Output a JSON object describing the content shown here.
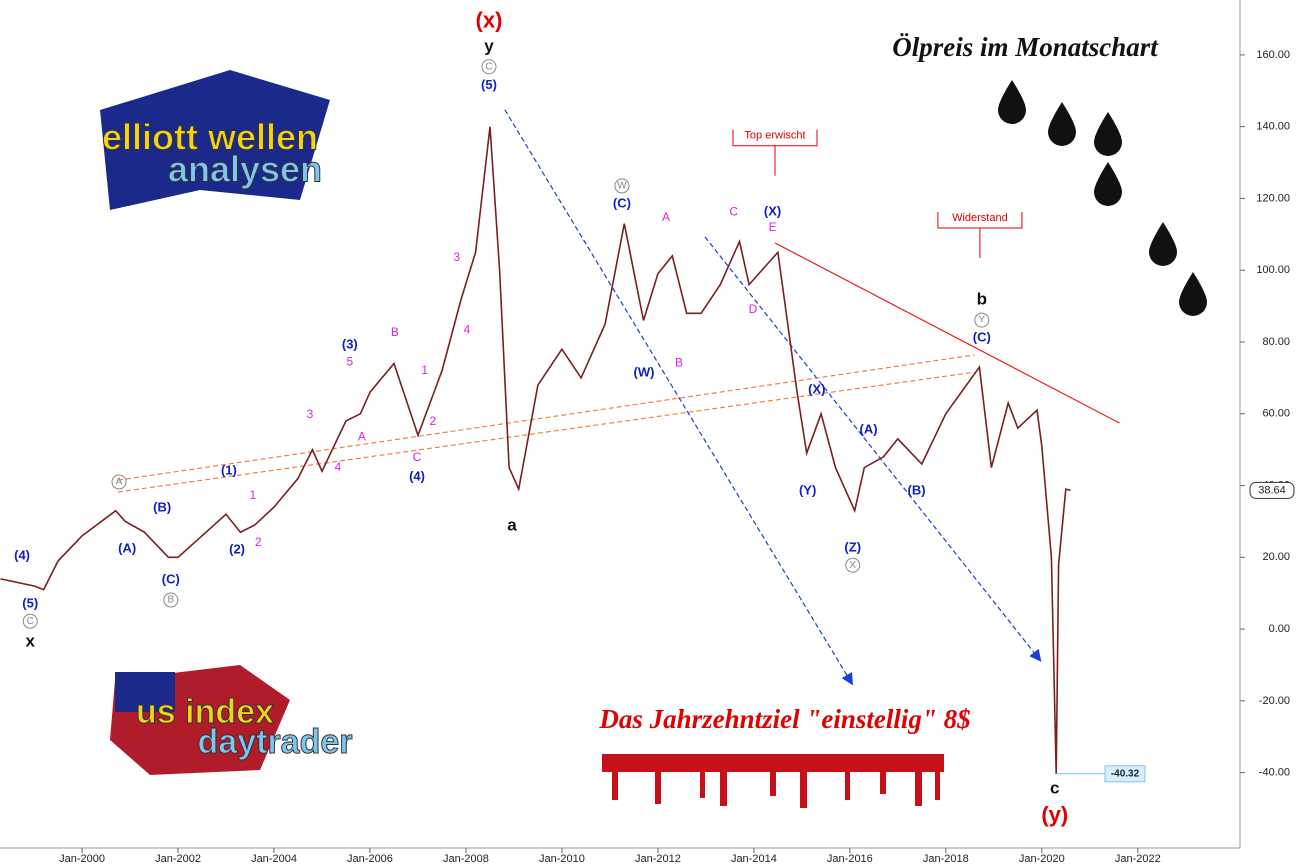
{
  "chart_data": {
    "type": "line",
    "title": "Ölpreis im Monatschart",
    "subtitle": "Das Jahrzehntziel \"einstellig\" 8$",
    "logos": [
      {
        "line1": "elliott wellen",
        "line2": "analysen"
      },
      {
        "line1": "us index",
        "line2": "daytrader"
      }
    ],
    "xlim": [
      1998.29,
      2024.13
    ],
    "ylim": [
      -61,
      175.3
    ],
    "xticks": [
      {
        "value": 2000,
        "label": "Jan-2000"
      },
      {
        "value": 2002,
        "label": "Jan-2002"
      },
      {
        "value": 2004,
        "label": "Jan-2004"
      },
      {
        "value": 2006,
        "label": "Jan-2006"
      },
      {
        "value": 2008,
        "label": "Jan-2008"
      },
      {
        "value": 2010,
        "label": "Jan-2010"
      },
      {
        "value": 2012,
        "label": "Jan-2012"
      },
      {
        "value": 2014,
        "label": "Jan-2014"
      },
      {
        "value": 2016,
        "label": "Jan-2016"
      },
      {
        "value": 2018,
        "label": "Jan-2018"
      },
      {
        "value": 2020,
        "label": "Jan-2020"
      },
      {
        "value": 2022,
        "label": "Jan-2022"
      }
    ],
    "yticks": [
      {
        "value": -40,
        "label": "-40.00"
      },
      {
        "value": -20,
        "label": "-20.00"
      },
      {
        "value": 0,
        "label": "0.00"
      },
      {
        "value": 20,
        "label": "20.00"
      },
      {
        "value": 40,
        "label": "40.00"
      },
      {
        "value": 60,
        "label": "60.00"
      },
      {
        "value": 80,
        "label": "80.00"
      },
      {
        "value": 100,
        "label": "100.00"
      },
      {
        "value": 120,
        "label": "120.00"
      },
      {
        "value": 140,
        "label": "140.00"
      },
      {
        "value": 160,
        "label": "160.00"
      }
    ],
    "series": [
      {
        "color": "#7a1f1f",
        "x": [
          1998.3,
          1999.0,
          1999.2,
          1999.5,
          2000.0,
          2000.7,
          2000.9,
          2001.3,
          2001.8,
          2002.0,
          2002.5,
          2003.0,
          2003.3,
          2003.6,
          2004.0,
          2004.5,
          2004.8,
          2005.0,
          2005.5,
          2005.8,
          2006.0,
          2006.5,
          2006.9,
          2007.0,
          2007.5,
          2007.9,
          2008.2,
          2008.5,
          2008.7,
          2008.9,
          2009.1,
          2009.5,
          2010.0,
          2010.4,
          2010.9,
          2011.3,
          2011.7,
          2012.0,
          2012.3,
          2012.6,
          2012.9,
          2013.3,
          2013.7,
          2013.9,
          2014.3,
          2014.5,
          2014.9,
          2015.1,
          2015.4,
          2015.7,
          2016.1,
          2016.3,
          2016.7,
          2017.0,
          2017.5,
          2018.0,
          2018.7,
          2018.95,
          2019.3,
          2019.5,
          2019.9,
          2020.0,
          2020.2,
          2020.3,
          2020.35,
          2020.5,
          2020.6
        ],
        "values": [
          14,
          12,
          11,
          19,
          26,
          33,
          30,
          27,
          20,
          20,
          26,
          32,
          27,
          29,
          34,
          42,
          50,
          44,
          58,
          60,
          66,
          74,
          58,
          54,
          72,
          92,
          105,
          140,
          100,
          45,
          39,
          68,
          78,
          70,
          85,
          113,
          86,
          99,
          104,
          88,
          88,
          96,
          108,
          96,
          102,
          105,
          66,
          49,
          60,
          45,
          33,
          45,
          48,
          53,
          46,
          60,
          73,
          45,
          63,
          56,
          61,
          51,
          20,
          -40.32,
          18,
          39,
          38.64
        ]
      }
    ],
    "last_price": 38.64,
    "low_price": -40.32,
    "trendlines": [
      {
        "x1": 2008.81,
        "y1": 144.7,
        "x2": 2016.04,
        "y2": -15.1,
        "color": "#1a3fd0",
        "dashed": true,
        "arrow": true
      },
      {
        "x1": 2012.98,
        "y1": 109.3,
        "x2": 2019.96,
        "y2": -8.6,
        "color": "#1a3fd0",
        "dashed": true,
        "arrow": true
      },
      {
        "x1": 2014.44,
        "y1": 107.6,
        "x2": 2021.62,
        "y2": 57.4,
        "color": "#e82020",
        "dashed": false,
        "arrow": false
      },
      {
        "x1": 2000.75,
        "y1": 41.5,
        "x2": 2018.6,
        "y2": 76.4,
        "color": "#f08040",
        "dashed": true,
        "arrow": false
      },
      {
        "x1": 2000.75,
        "y1": 38.2,
        "x2": 2018.6,
        "y2": 71.6,
        "color": "#f08040",
        "dashed": true,
        "arrow": false
      }
    ],
    "annotations": [
      {
        "text": "(x)",
        "x": 2008.48,
        "y": 169.2,
        "kind": "major"
      },
      {
        "text": "y",
        "x": 2008.48,
        "y": 162.2,
        "kind": "primary"
      },
      {
        "text": "C",
        "x": 2008.48,
        "y": 156.7,
        "kind": "circle"
      },
      {
        "text": "(5)",
        "x": 2008.48,
        "y": 151.4,
        "kind": "intermediate"
      },
      {
        "text": "W",
        "x": 2011.25,
        "y": 123.5,
        "kind": "circle"
      },
      {
        "text": "(C)",
        "x": 2011.25,
        "y": 118.5,
        "kind": "intermediate"
      },
      {
        "text": "A",
        "x": 2012.17,
        "y": 114.6,
        "kind": "minor"
      },
      {
        "text": "C",
        "x": 2013.58,
        "y": 116.2,
        "kind": "minor"
      },
      {
        "text": "(X)",
        "x": 2014.39,
        "y": 116.2,
        "kind": "intermediate"
      },
      {
        "text": "E",
        "x": 2014.39,
        "y": 111.8,
        "kind": "minor"
      },
      {
        "text": "D",
        "x": 2013.98,
        "y": 88.9,
        "kind": "minor"
      },
      {
        "text": "B",
        "x": 2012.44,
        "y": 74.1,
        "kind": "minor"
      },
      {
        "text": "(W)",
        "x": 2011.71,
        "y": 71.4,
        "kind": "intermediate"
      },
      {
        "text": "Top erwischt",
        "x": 2014.44,
        "y": 136.9,
        "kind": "note"
      },
      {
        "text": "Widerstand",
        "x": 2018.71,
        "y": 114.0,
        "kind": "note"
      },
      {
        "text": "b",
        "x": 2018.75,
        "y": 91.7,
        "kind": "primary"
      },
      {
        "text": "Y",
        "x": 2018.75,
        "y": 86.1,
        "kind": "circle"
      },
      {
        "text": "(C)",
        "x": 2018.75,
        "y": 81.1,
        "kind": "intermediate"
      },
      {
        "text": "(X)",
        "x": 2015.31,
        "y": 66.6,
        "kind": "intermediate"
      },
      {
        "text": "(Y)",
        "x": 2015.12,
        "y": 38.5,
        "kind": "intermediate"
      },
      {
        "text": "(A)",
        "x": 2016.39,
        "y": 55.5,
        "kind": "intermediate"
      },
      {
        "text": "(B)",
        "x": 2017.39,
        "y": 38.5,
        "kind": "intermediate"
      },
      {
        "text": "(Z)",
        "x": 2016.06,
        "y": 22.6,
        "kind": "intermediate"
      },
      {
        "text": "X",
        "x": 2016.06,
        "y": 17.8,
        "kind": "circle"
      },
      {
        "text": "a",
        "x": 2008.96,
        "y": 28.7,
        "kind": "primary"
      },
      {
        "text": "(3)",
        "x": 2005.58,
        "y": 79.2,
        "kind": "intermediate"
      },
      {
        "text": "5",
        "x": 2005.58,
        "y": 74.4,
        "kind": "minor"
      },
      {
        "text": "B",
        "x": 2006.52,
        "y": 82.5,
        "kind": "minor"
      },
      {
        "text": "1",
        "x": 2007.14,
        "y": 71.9,
        "kind": "minor"
      },
      {
        "text": "2",
        "x": 2007.31,
        "y": 57.7,
        "kind": "minor"
      },
      {
        "text": "C",
        "x": 2006.98,
        "y": 47.7,
        "kind": "minor"
      },
      {
        "text": "(4)",
        "x": 2006.98,
        "y": 42.4,
        "kind": "intermediate"
      },
      {
        "text": "A",
        "x": 2005.83,
        "y": 53.5,
        "kind": "minor"
      },
      {
        "text": "3",
        "x": 2004.75,
        "y": 59.7,
        "kind": "minor"
      },
      {
        "text": "4",
        "x": 2005.33,
        "y": 44.9,
        "kind": "minor"
      },
      {
        "text": "3",
        "x": 2007.81,
        "y": 103.4,
        "kind": "minor"
      },
      {
        "text": "4",
        "x": 2008.02,
        "y": 83.3,
        "kind": "minor"
      },
      {
        "text": "(1)",
        "x": 2003.06,
        "y": 44.0,
        "kind": "intermediate"
      },
      {
        "text": "1",
        "x": 2003.56,
        "y": 37.1,
        "kind": "minor"
      },
      {
        "text": "2",
        "x": 2003.67,
        "y": 24.0,
        "kind": "minor"
      },
      {
        "text": "(2)",
        "x": 2003.23,
        "y": 22.0,
        "kind": "intermediate"
      },
      {
        "text": "A",
        "x": 2000.77,
        "y": 41.0,
        "kind": "circle"
      },
      {
        "text": "(B)",
        "x": 2001.67,
        "y": 33.7,
        "kind": "intermediate"
      },
      {
        "text": "(A)",
        "x": 2000.94,
        "y": 22.3,
        "kind": "intermediate"
      },
      {
        "text": "(C)",
        "x": 2001.85,
        "y": 13.7,
        "kind": "intermediate"
      },
      {
        "text": "B",
        "x": 2001.85,
        "y": 8.1,
        "kind": "circle"
      },
      {
        "text": "(4)",
        "x": 1998.75,
        "y": 20.3,
        "kind": "intermediate"
      },
      {
        "text": "(5)",
        "x": 1998.92,
        "y": 7.0,
        "kind": "intermediate"
      },
      {
        "text": "C",
        "x": 1998.92,
        "y": 2.2,
        "kind": "circle"
      },
      {
        "text": "x",
        "x": 1998.92,
        "y": -3.6,
        "kind": "primary"
      },
      {
        "text": "c",
        "x": 2020.27,
        "y": -44.6,
        "kind": "primary"
      },
      {
        "text": "(y)",
        "x": 2020.27,
        "y": -52.1,
        "kind": "major"
      }
    ]
  }
}
